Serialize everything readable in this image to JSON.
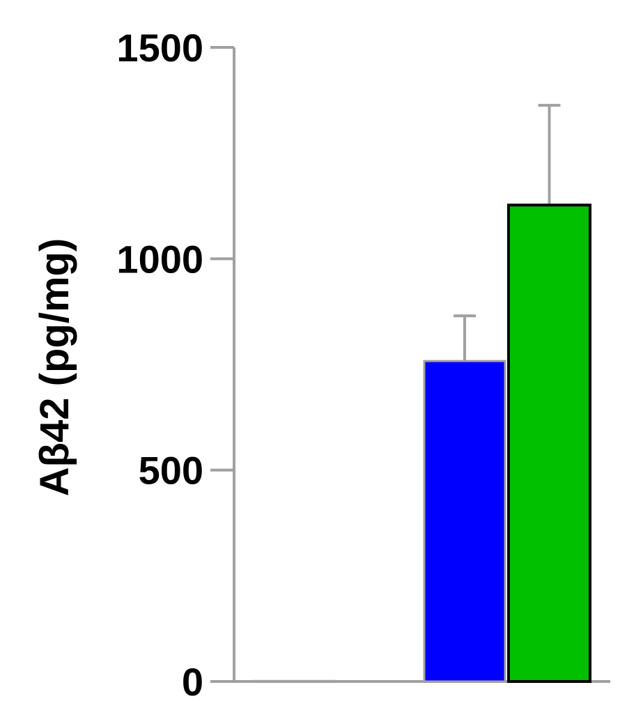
{
  "chart_data": {
    "type": "bar",
    "ylabel": "Aβ42 (pg/mg)",
    "ylim": [
      0,
      1500
    ],
    "yticks": [
      0,
      500,
      1000,
      1500
    ],
    "ytick_labels": [
      "0",
      "500",
      "1000",
      "1500"
    ],
    "grid": false,
    "legend": "none",
    "bars": [
      {
        "value": 2,
        "error": 0,
        "color": "#ffffff"
      },
      {
        "value": 758,
        "error": 107,
        "color": "#0000ff"
      },
      {
        "value": 1127,
        "error": 236,
        "color": "#00c000"
      }
    ]
  }
}
